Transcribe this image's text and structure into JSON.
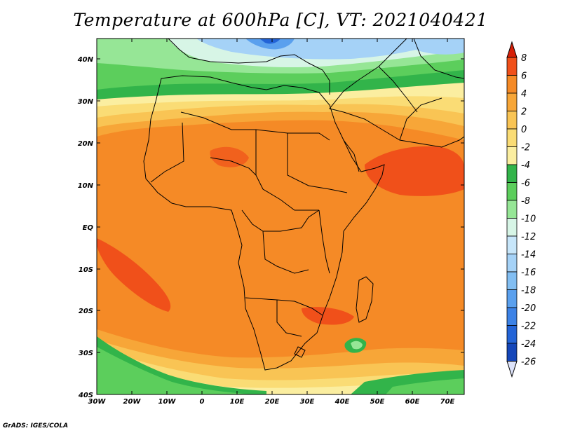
{
  "title": "Temperature at 600hPa [C], VT: 2021040421",
  "credit": "GrADS: IGES/COLA",
  "map": {
    "type": "filled-contour",
    "variable": "Temperature",
    "level": "600hPa",
    "units": "C",
    "valid_time": "2021040421",
    "lon_range": [
      -30,
      75
    ],
    "lat_range": [
      -40,
      45
    ],
    "lat_labels": [
      "40N",
      "30N",
      "20N",
      "10N",
      "EQ",
      "10S",
      "20S",
      "30S",
      "40S"
    ],
    "lon_labels": [
      "30W",
      "20W",
      "10W",
      "0",
      "10E",
      "20E",
      "30E",
      "40E",
      "50E",
      "60E",
      "70E"
    ]
  },
  "colorbar": {
    "levels": [
      "8",
      "6",
      "4",
      "2",
      "0",
      "-2",
      "-4",
      "-6",
      "-8",
      "-10",
      "-12",
      "-14",
      "-16",
      "-18",
      "-20",
      "-22",
      "-24",
      "-26"
    ],
    "colors": [
      "#d62008",
      "#f0501a",
      "#f58a26",
      "#f7a638",
      "#f9c454",
      "#fadc75",
      "#fbeea0",
      "#32b44a",
      "#5cce5c",
      "#96e696",
      "#d7f5e6",
      "#c7e6fa",
      "#a5d2f7",
      "#82bef2",
      "#5aa0ee",
      "#3c82e6",
      "#2364d7",
      "#1446b9",
      "#0a1e82"
    ]
  },
  "colors": {
    "very_warm": "#f0501a",
    "warm": "#f58a26",
    "mid_warm": "#f7a638",
    "mild": "#f9c454",
    "pale": "#fadc75",
    "cream": "#fbeea0",
    "green": "#32b44a",
    "light_green": "#5cce5c",
    "pale_green": "#96e696",
    "ice": "#d7f5e6",
    "light_blue": "#a5d2f7",
    "blue": "#5aa0ee",
    "dark_blue": "#2364d7",
    "coast": "#000000"
  }
}
